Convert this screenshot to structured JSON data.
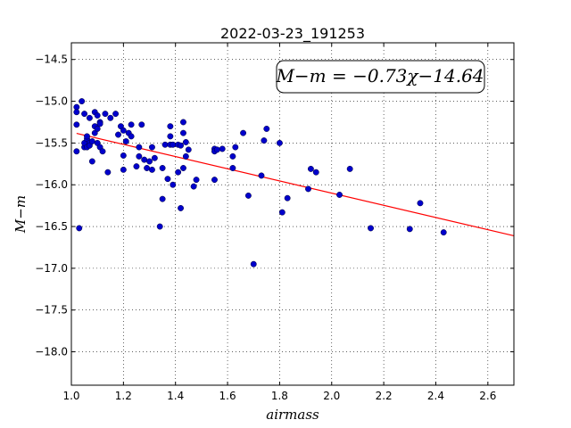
{
  "chart_data": {
    "type": "scatter",
    "title": "2022-03-23_191253",
    "xlabel": "airmass",
    "ylabel": "M−m",
    "xlim": [
      1.0,
      2.7
    ],
    "ylim": [
      -18.4,
      -14.3
    ],
    "y_inverted": true,
    "xticks": [
      1.0,
      1.2,
      1.4,
      1.6,
      1.8,
      2.0,
      2.2,
      2.4,
      2.6
    ],
    "xtick_labels": [
      "1.0",
      "1.2",
      "1.4",
      "1.6",
      "1.8",
      "2.0",
      "2.2",
      "2.4",
      "2.6"
    ],
    "yticks": [
      -14.5,
      -15.0,
      -15.5,
      -16.0,
      -16.5,
      -17.0,
      -17.5,
      -18.0
    ],
    "ytick_labels": [
      "−14.5",
      "−15.0",
      "−15.5",
      "−16.0",
      "−16.5",
      "−17.0",
      "−17.5",
      "−18.0"
    ],
    "grid": true,
    "annotation": "M−m = −0.73χ−14.64",
    "fit": {
      "slope": -0.73,
      "intercept": -14.64,
      "color": "#ff0000"
    },
    "point_color": "#0000cc",
    "points": [
      [
        1.02,
        -15.07
      ],
      [
        1.02,
        -15.13
      ],
      [
        1.02,
        -15.28
      ],
      [
        1.02,
        -15.6
      ],
      [
        1.03,
        -16.52
      ],
      [
        1.04,
        -15.0
      ],
      [
        1.05,
        -15.55
      ],
      [
        1.05,
        -15.15
      ],
      [
        1.05,
        -15.5
      ],
      [
        1.06,
        -15.55
      ],
      [
        1.06,
        -15.45
      ],
      [
        1.06,
        -15.42
      ],
      [
        1.07,
        -15.5
      ],
      [
        1.07,
        -15.2
      ],
      [
        1.07,
        -15.53
      ],
      [
        1.08,
        -15.72
      ],
      [
        1.08,
        -15.48
      ],
      [
        1.09,
        -15.13
      ],
      [
        1.09,
        -15.3
      ],
      [
        1.09,
        -15.38
      ],
      [
        1.1,
        -15.17
      ],
      [
        1.1,
        -15.5
      ],
      [
        1.1,
        -15.33
      ],
      [
        1.11,
        -15.25
      ],
      [
        1.11,
        -15.27
      ],
      [
        1.11,
        -15.55
      ],
      [
        1.12,
        -15.6
      ],
      [
        1.13,
        -15.15
      ],
      [
        1.14,
        -15.85
      ],
      [
        1.15,
        -15.2
      ],
      [
        1.17,
        -15.15
      ],
      [
        1.18,
        -15.4
      ],
      [
        1.19,
        -15.3
      ],
      [
        1.2,
        -15.35
      ],
      [
        1.2,
        -15.65
      ],
      [
        1.2,
        -15.82
      ],
      [
        1.21,
        -15.48
      ],
      [
        1.22,
        -15.38
      ],
      [
        1.23,
        -15.28
      ],
      [
        1.23,
        -15.42
      ],
      [
        1.25,
        -15.78
      ],
      [
        1.26,
        -15.55
      ],
      [
        1.26,
        -15.66
      ],
      [
        1.27,
        -15.28
      ],
      [
        1.28,
        -15.7
      ],
      [
        1.29,
        -15.8
      ],
      [
        1.3,
        -15.72
      ],
      [
        1.31,
        -15.82
      ],
      [
        1.31,
        -15.55
      ],
      [
        1.32,
        -15.68
      ],
      [
        1.34,
        -16.5
      ],
      [
        1.35,
        -16.17
      ],
      [
        1.35,
        -15.8
      ],
      [
        1.36,
        -15.52
      ],
      [
        1.37,
        -15.93
      ],
      [
        1.38,
        -15.3
      ],
      [
        1.38,
        -15.42
      ],
      [
        1.38,
        -15.52
      ],
      [
        1.39,
        -15.52
      ],
      [
        1.39,
        -16.0
      ],
      [
        1.41,
        -15.52
      ],
      [
        1.41,
        -15.85
      ],
      [
        1.42,
        -16.28
      ],
      [
        1.42,
        -15.53
      ],
      [
        1.43,
        -15.8
      ],
      [
        1.43,
        -15.38
      ],
      [
        1.43,
        -15.25
      ],
      [
        1.44,
        -15.66
      ],
      [
        1.44,
        -15.49
      ],
      [
        1.45,
        -15.58
      ],
      [
        1.47,
        -16.02
      ],
      [
        1.48,
        -15.94
      ],
      [
        1.55,
        -15.57
      ],
      [
        1.55,
        -15.6
      ],
      [
        1.55,
        -15.94
      ],
      [
        1.56,
        -15.58
      ],
      [
        1.58,
        -15.57
      ],
      [
        1.62,
        -15.8
      ],
      [
        1.62,
        -15.66
      ],
      [
        1.63,
        -15.55
      ],
      [
        1.66,
        -15.38
      ],
      [
        1.68,
        -16.13
      ],
      [
        1.7,
        -16.95
      ],
      [
        1.73,
        -15.89
      ],
      [
        1.74,
        -15.47
      ],
      [
        1.75,
        -15.33
      ],
      [
        1.8,
        -15.5
      ],
      [
        1.81,
        -16.33
      ],
      [
        1.83,
        -16.16
      ],
      [
        1.91,
        -16.05
      ],
      [
        1.92,
        -15.81
      ],
      [
        1.94,
        -15.85
      ],
      [
        2.03,
        -16.12
      ],
      [
        2.07,
        -15.81
      ],
      [
        2.15,
        -16.52
      ],
      [
        2.3,
        -16.53
      ],
      [
        2.34,
        -16.22
      ],
      [
        2.43,
        -16.57
      ]
    ]
  }
}
